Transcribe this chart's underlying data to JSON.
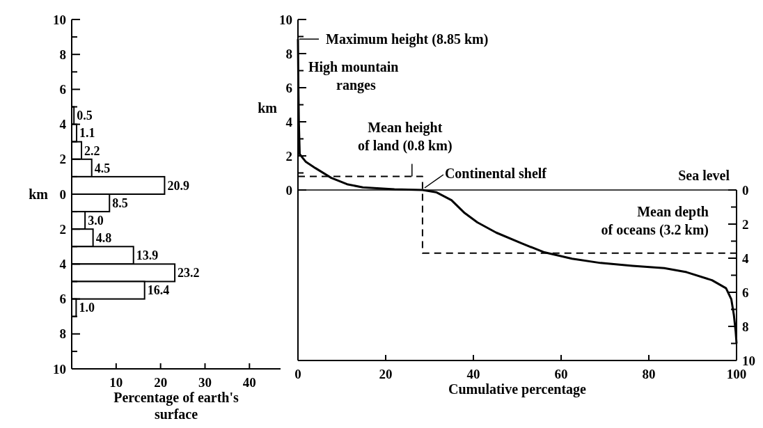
{
  "chart_data": [
    {
      "type": "histogram",
      "orientation": "horizontal",
      "bins": [
        5,
        4,
        3,
        2,
        1,
        0,
        -1,
        -2,
        -3,
        -4,
        -5,
        -6,
        -7
      ],
      "values": [
        0.5,
        1.1,
        2.2,
        4.5,
        20.9,
        8.5,
        3.0,
        4.8,
        13.9,
        23.2,
        16.4,
        1.0
      ],
      "value_labels": [
        "0.5",
        "1.1",
        "2.2",
        "4.5",
        "20.9",
        "8.5",
        "3.0",
        "4.8",
        "13.9",
        "23.2",
        "16.4",
        "1.0"
      ],
      "color": "#ffffff",
      "xlabel": "Percentage of earth's surface",
      "ylabel": "km",
      "xlim": [
        0,
        47
      ],
      "xticks": [
        10,
        20,
        30,
        40
      ],
      "ylim": [
        -10,
        10
      ],
      "yticks": [
        10,
        {
          "value": 9,
          "label": null
        },
        8,
        {
          "value": 7,
          "label": null
        },
        6,
        {
          "value": 5,
          "label": null
        },
        4,
        {
          "value": 3,
          "label": null
        },
        2,
        {
          "value": 1,
          "label": null
        },
        0,
        {
          "value": -1,
          "label": null
        },
        {
          "value": -2,
          "label": "2"
        },
        {
          "value": -3,
          "label": null
        },
        {
          "value": -4,
          "label": "4"
        },
        {
          "value": -5,
          "label": null
        },
        {
          "value": -6,
          "label": "6"
        },
        {
          "value": -7,
          "label": null
        },
        {
          "value": -8,
          "label": "8"
        },
        {
          "value": -9,
          "label": null
        },
        {
          "value": -10,
          "label": "10"
        }
      ]
    },
    {
      "type": "line",
      "xlabel": "Cumulative percentage",
      "ylabel": "km",
      "xlim": [
        0,
        100
      ],
      "xticks": [
        0,
        20,
        40,
        60,
        80,
        100
      ],
      "ylim": [
        -10,
        10
      ],
      "yticks": [
        0,
        {
          "value": 1,
          "label": null
        },
        2,
        {
          "value": 3,
          "label": null
        },
        4,
        {
          "value": 5,
          "label": null
        },
        6,
        {
          "value": 7,
          "label": null
        },
        8,
        {
          "value": 9,
          "label": null
        },
        10
      ],
      "y2lim": [
        -10,
        10
      ],
      "y2ticks": [
        0,
        {
          "value": -1,
          "label": null
        },
        {
          "value": -2,
          "label": "2"
        },
        {
          "value": -3,
          "label": null
        },
        {
          "value": -4,
          "label": "4"
        },
        {
          "value": -5,
          "label": null
        },
        {
          "value": -6,
          "label": "6"
        },
        {
          "value": -7,
          "label": null
        },
        {
          "value": -8,
          "label": "8"
        },
        {
          "value": -9,
          "label": null
        },
        {
          "value": -10,
          "label": "10"
        }
      ],
      "series": [
        {
          "color": "#000000",
          "x": [
            0,
            0.1,
            0.2,
            0.4,
            1.8,
            4,
            7.6,
            11.2,
            14.8,
            22,
            28.4,
            31.5,
            35,
            38,
            40.9,
            45.2,
            51,
            56,
            62.5,
            69,
            76.3,
            83.5,
            88.6,
            94.4,
            97.6,
            98.8,
            99.4,
            99.8,
            100
          ],
          "values": [
            8.85,
            6,
            4,
            2.1,
            1.65,
            1.28,
            0.71,
            0.34,
            0.15,
            0.04,
            0,
            -0.13,
            -0.6,
            -1.35,
            -1.9,
            -2.5,
            -3.13,
            -3.64,
            -4.03,
            -4.28,
            -4.45,
            -4.58,
            -4.82,
            -5.29,
            -5.76,
            -6.4,
            -7.35,
            -8.3,
            -9
          ]
        },
        {
          "color": "#000000",
          "line_style": "dashed",
          "x": [
            0,
            28.4,
            28.4,
            100
          ],
          "values": [
            0.8,
            0.8,
            -3.7,
            -3.7
          ]
        }
      ],
      "ref_lines": [
        {
          "axis": "y",
          "value": 0,
          "label": "Sea level"
        }
      ],
      "annotations": [
        {
          "text": "Maximum height (8.85 km)",
          "x": 0,
          "y": 8.85
        },
        {
          "text": "High mountain ranges",
          "x": 0,
          "y": 6
        },
        {
          "text": "Mean height of land (0.8 km)",
          "x": 26,
          "y": 0.8
        },
        {
          "text": "Continental shelf",
          "x": 28.4,
          "y": 0
        },
        {
          "text": "Mean depth of oceans (3.2 km)",
          "x": 100,
          "y": -3.7
        }
      ]
    }
  ]
}
